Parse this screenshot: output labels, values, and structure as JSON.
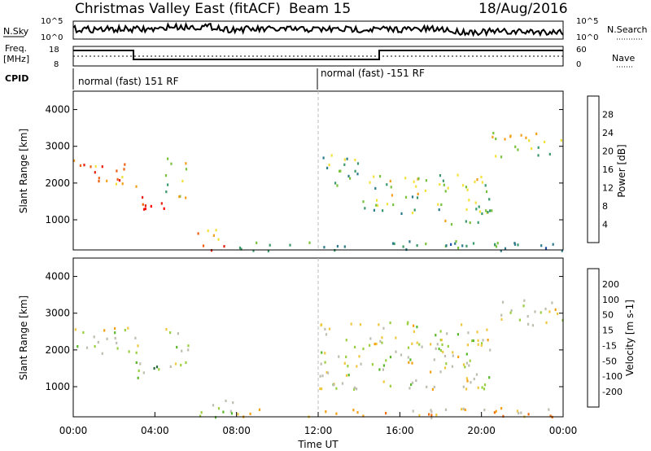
{
  "header": {
    "site": "Christmas Valley East (fitACF)",
    "beam": "Beam 15",
    "date": "18/Aug/2016"
  },
  "strip": {
    "nsky_label": "N.Sky",
    "nsky_ticks": [
      "10^5",
      "10^0"
    ],
    "nsearch_label": "N.Search",
    "nsearch_ticks": [
      "10^5",
      "10^0"
    ],
    "freq_label": "Freq.",
    "freq_unit": "[MHz]",
    "freq_ticks": [
      "18",
      "8"
    ],
    "nave_label": "Nave",
    "nave_ticks": [
      "60",
      "0"
    ],
    "cpid_label": "CPID",
    "cpid_segments": [
      "normal (fast) 151 RF",
      "normal (fast) -151 RF"
    ]
  },
  "colors": {
    "power": [
      "#0000ff",
      "#1f4fa8",
      "#2d7d8c",
      "#3a9a6a",
      "#7ac23c",
      "#f2e23a",
      "#f5a01a",
      "#f06010",
      "#e62010",
      "#ff0000"
    ],
    "velocity": [
      "#1a3aa0",
      "#2a6a3a",
      "#5ab82a",
      "#9ad040",
      "#bdbdb0",
      "#f0c840",
      "#f5a010",
      "#f07010",
      "#e82010",
      "#ff0000"
    ]
  },
  "chart_data": [
    {
      "type": "heatmap",
      "panel": "power",
      "ylabel": "Slant Range [km]",
      "yticks": [
        "4000",
        "3000",
        "2000",
        "1000"
      ],
      "ylim": [
        180,
        4500
      ],
      "xlim": [
        0,
        24
      ],
      "colorbar_label": "Power [dB]",
      "colorbar_ticks": [
        "28",
        "24",
        "20",
        "16",
        "12",
        "8",
        "4"
      ],
      "regions": [
        {
          "t0": 0.0,
          "t1": 1.5,
          "r0": 2000,
          "r1": 2700,
          "level": 0.75
        },
        {
          "t0": 1.5,
          "t1": 3.2,
          "r0": 1900,
          "r1": 2600,
          "level": 0.65
        },
        {
          "t0": 3.0,
          "t1": 4.5,
          "r0": 1100,
          "r1": 1700,
          "level": 0.85
        },
        {
          "t0": 4.5,
          "t1": 5.6,
          "r0": 1500,
          "r1": 2700,
          "level": 0.5
        },
        {
          "t0": 6.0,
          "t1": 7.5,
          "r0": 200,
          "r1": 800,
          "level": 0.7
        },
        {
          "t0": 12.0,
          "t1": 14.0,
          "r0": 1800,
          "r1": 2800,
          "level": 0.4
        },
        {
          "t0": 14.0,
          "t1": 20.5,
          "r0": 1200,
          "r1": 2300,
          "level": 0.45
        },
        {
          "t0": 18.0,
          "t1": 20.5,
          "r0": 900,
          "r1": 1300,
          "level": 0.5
        },
        {
          "t0": 20.5,
          "t1": 24.0,
          "r0": 2700,
          "r1": 3400,
          "level": 0.55
        },
        {
          "t0": 6.0,
          "t1": 24.0,
          "r0": 180,
          "r1": 450,
          "level": 0.35
        }
      ]
    },
    {
      "type": "heatmap",
      "panel": "velocity",
      "ylabel": "Slant Range [km]",
      "yticks": [
        "4000",
        "3000",
        "2000",
        "1000"
      ],
      "ylim": [
        180,
        4500
      ],
      "xlim": [
        0,
        24
      ],
      "xticks": [
        "00:00",
        "04:00",
        "08:00",
        "12:00",
        "16:00",
        "20:00",
        "00:00"
      ],
      "xlabel": "Time UT",
      "colorbar_label": "Velocity [m s-1]",
      "colorbar_ticks": [
        "200",
        "100",
        "50",
        "15",
        "-15",
        "-50",
        "-100",
        "-200"
      ],
      "regions": [
        {
          "t0": 0.0,
          "t1": 3.2,
          "r0": 1900,
          "r1": 2700,
          "level": 0.45
        },
        {
          "t0": 3.0,
          "t1": 4.5,
          "r0": 1100,
          "r1": 1700,
          "level": 0.3
        },
        {
          "t0": 4.5,
          "t1": 5.6,
          "r0": 1500,
          "r1": 2700,
          "level": 0.45
        },
        {
          "t0": 6.0,
          "t1": 8.0,
          "r0": 200,
          "r1": 800,
          "level": 0.35
        },
        {
          "t0": 12.0,
          "t1": 20.5,
          "r0": 900,
          "r1": 2800,
          "level": 0.45
        },
        {
          "t0": 20.5,
          "t1": 24.0,
          "r0": 2700,
          "r1": 3400,
          "level": 0.45
        },
        {
          "t0": 8.0,
          "t1": 24.0,
          "r0": 180,
          "r1": 450,
          "level": 0.6
        }
      ]
    }
  ]
}
